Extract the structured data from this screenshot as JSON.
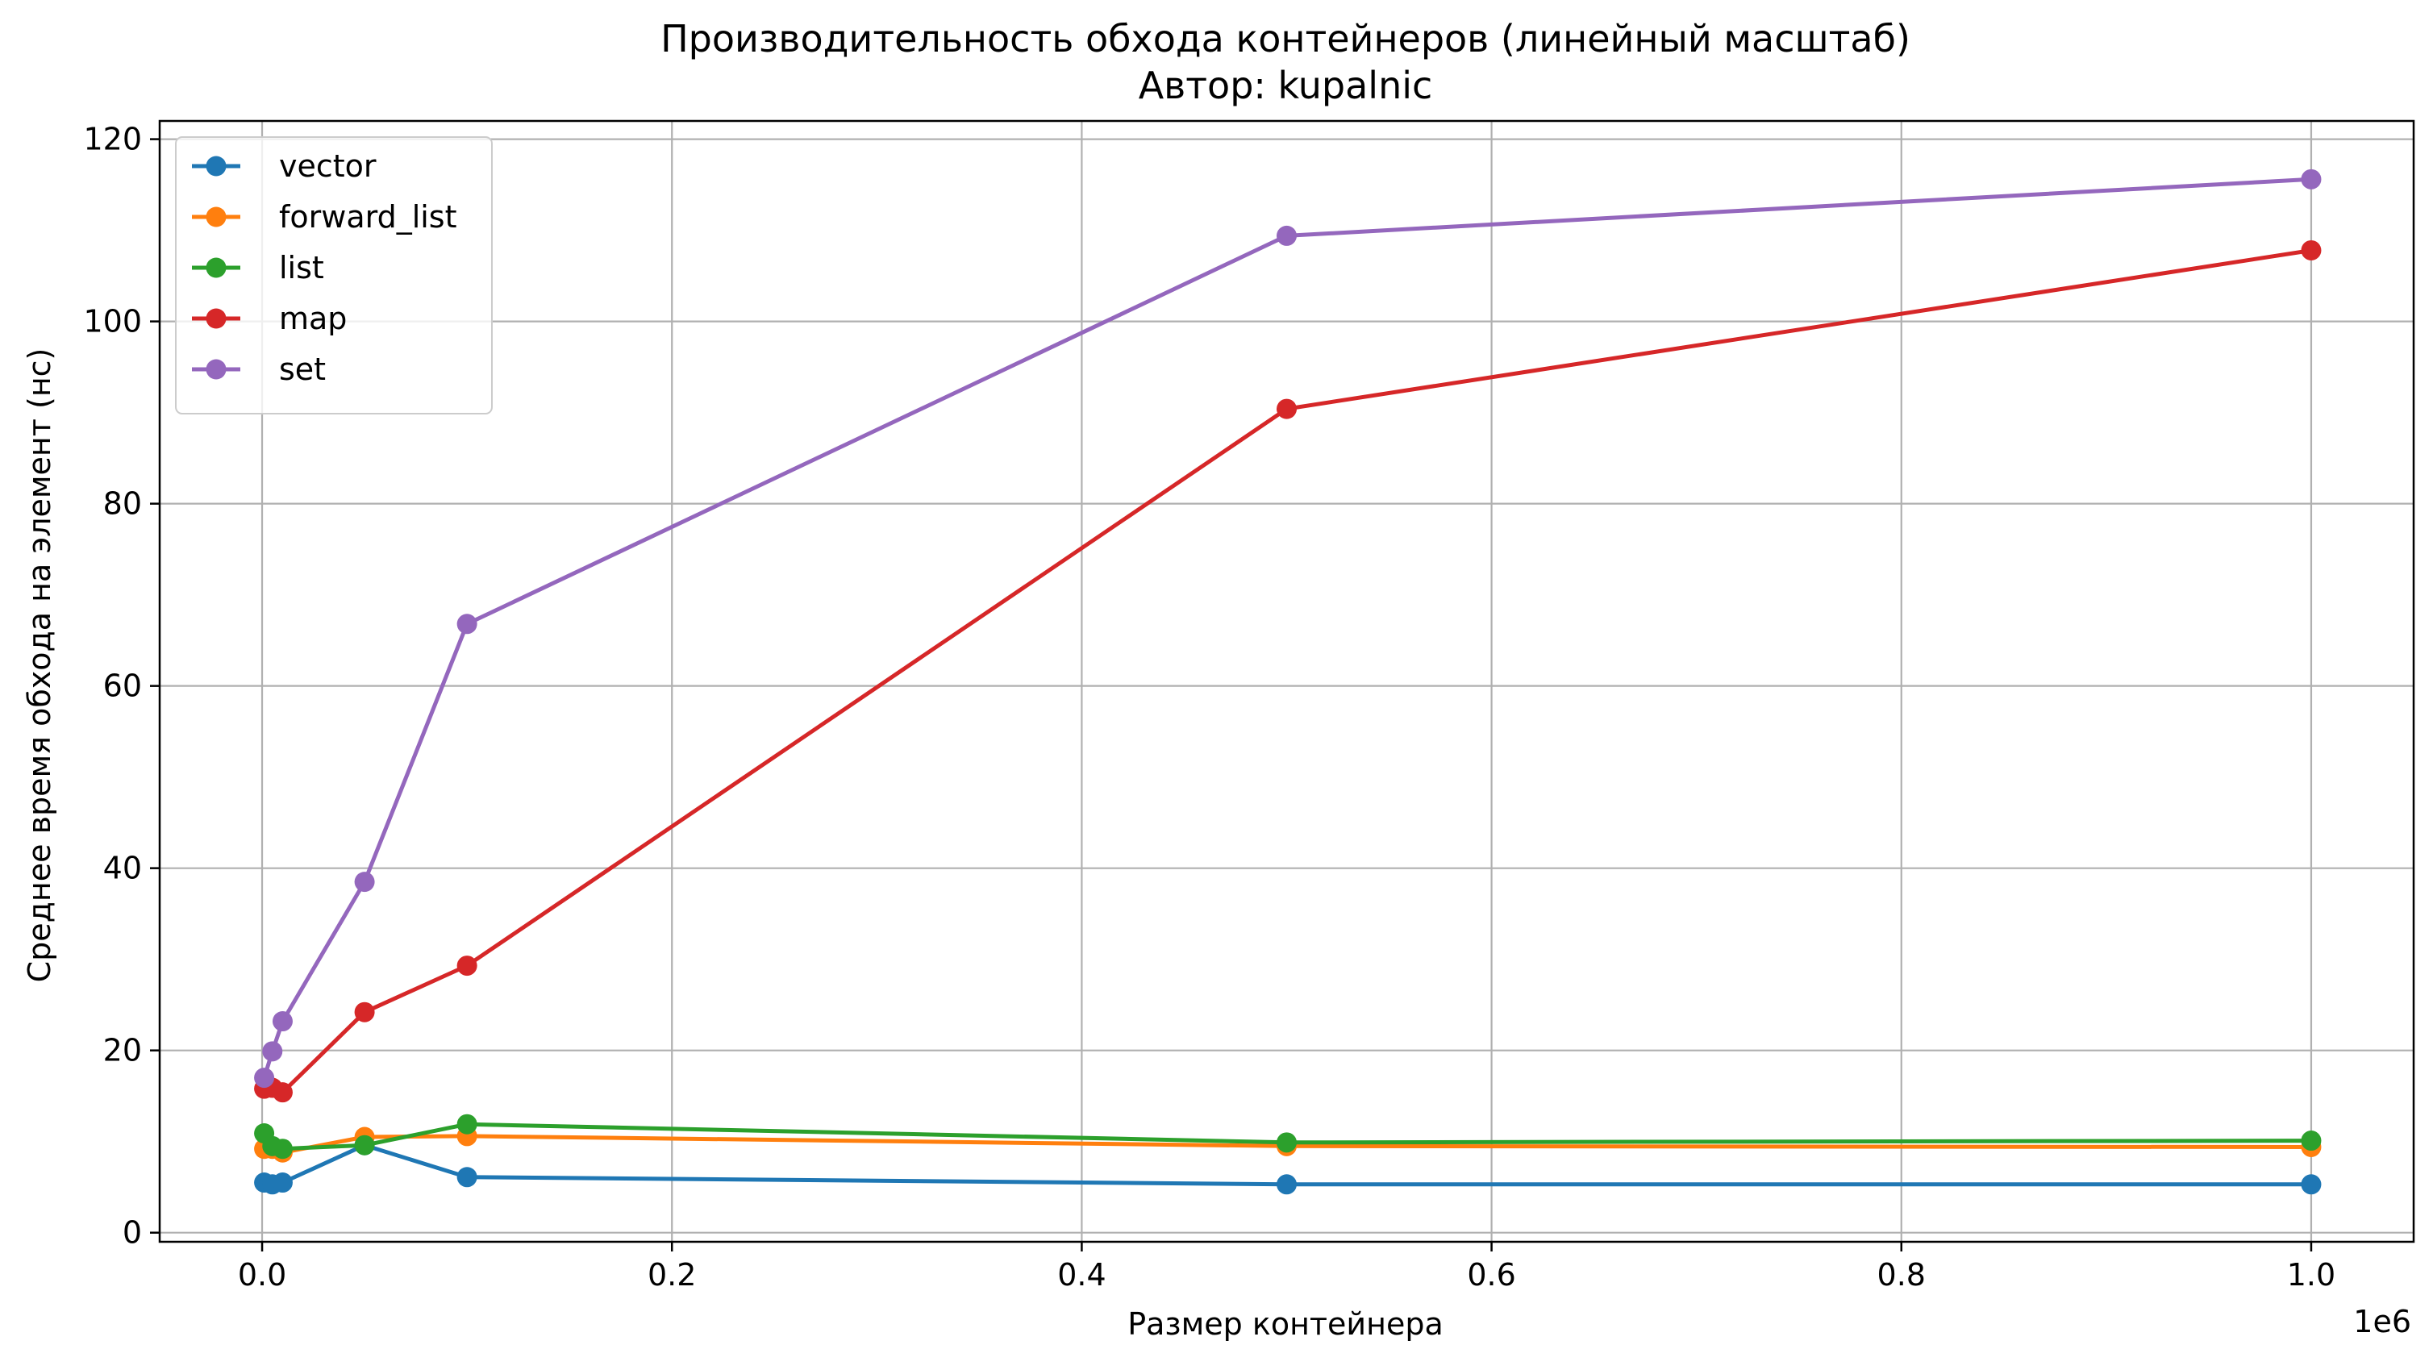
{
  "chart_data": {
    "type": "line",
    "title": "Производительность обхода контейнеров (линейный масштаб)",
    "subtitle": "Автор: kupalnic",
    "xlabel": "Размер контейнера",
    "ylabel": "Среднее время обхода на элемент (нс)",
    "x_offset_label": "1e6",
    "xlim": [
      -0.05,
      1.05
    ],
    "ylim": [
      -1,
      122
    ],
    "x_ticks": [
      0.0,
      0.2,
      0.4,
      0.6,
      0.8,
      1.0
    ],
    "x_tick_labels": [
      "0.0",
      "0.2",
      "0.4",
      "0.6",
      "0.8",
      "1.0"
    ],
    "y_ticks": [
      0,
      20,
      40,
      60,
      80,
      100,
      120
    ],
    "y_tick_labels": [
      "0",
      "20",
      "40",
      "60",
      "80",
      "100",
      "120"
    ],
    "grid": true,
    "legend_position": "top-left",
    "x": [
      0.001,
      0.005,
      0.01,
      0.05,
      0.1,
      0.5,
      1.0
    ],
    "series": [
      {
        "name": "vector",
        "color": "#1f77b4",
        "values": [
          5.5,
          5.3,
          5.5,
          9.6,
          6.1,
          5.3,
          5.3
        ]
      },
      {
        "name": "forward_list",
        "color": "#ff7f0e",
        "values": [
          9.2,
          9.2,
          8.8,
          10.5,
          10.6,
          9.5,
          9.4
        ]
      },
      {
        "name": "list",
        "color": "#2ca02c",
        "values": [
          10.9,
          9.5,
          9.2,
          9.6,
          11.9,
          9.9,
          10.1
        ]
      },
      {
        "name": "map",
        "color": "#d62728",
        "values": [
          15.8,
          15.9,
          15.4,
          24.2,
          29.3,
          90.4,
          107.8
        ]
      },
      {
        "name": "set",
        "color": "#9467bd",
        "values": [
          17.0,
          19.9,
          23.2,
          38.5,
          66.8,
          109.4,
          115.6
        ]
      }
    ]
  }
}
